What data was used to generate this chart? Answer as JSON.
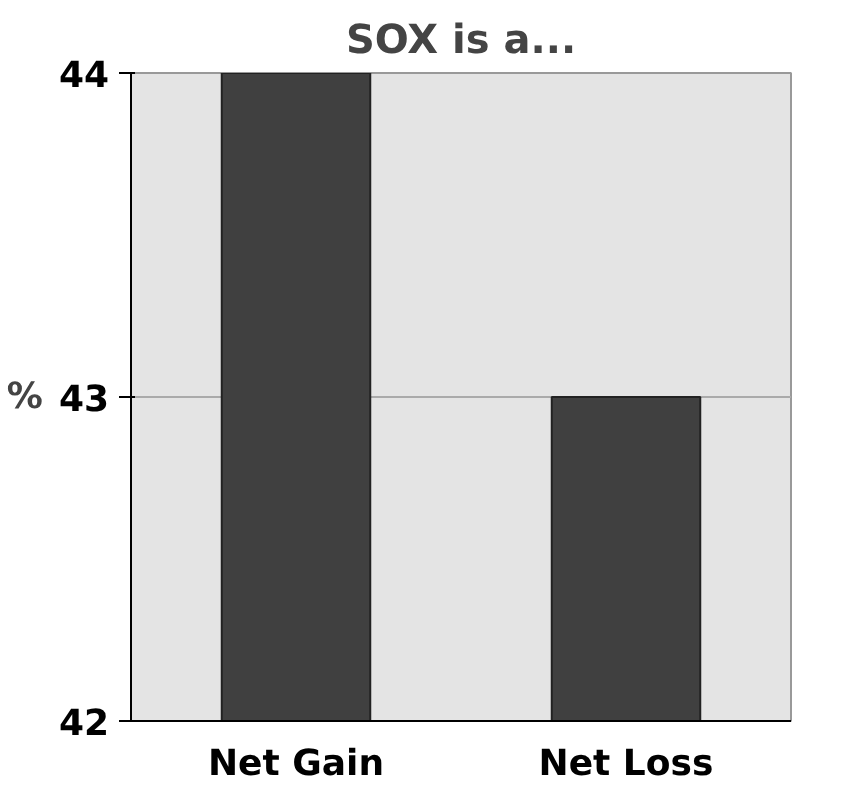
{
  "chart_data": {
    "type": "bar",
    "title": "SOX is a...",
    "ylabel": "%",
    "categories": [
      "Net Gain",
      "Net Loss"
    ],
    "values": [
      44,
      43
    ],
    "color": "#404040",
    "ylim": [
      42,
      44
    ],
    "yticks": [
      42,
      43,
      44
    ],
    "grid": "y"
  }
}
